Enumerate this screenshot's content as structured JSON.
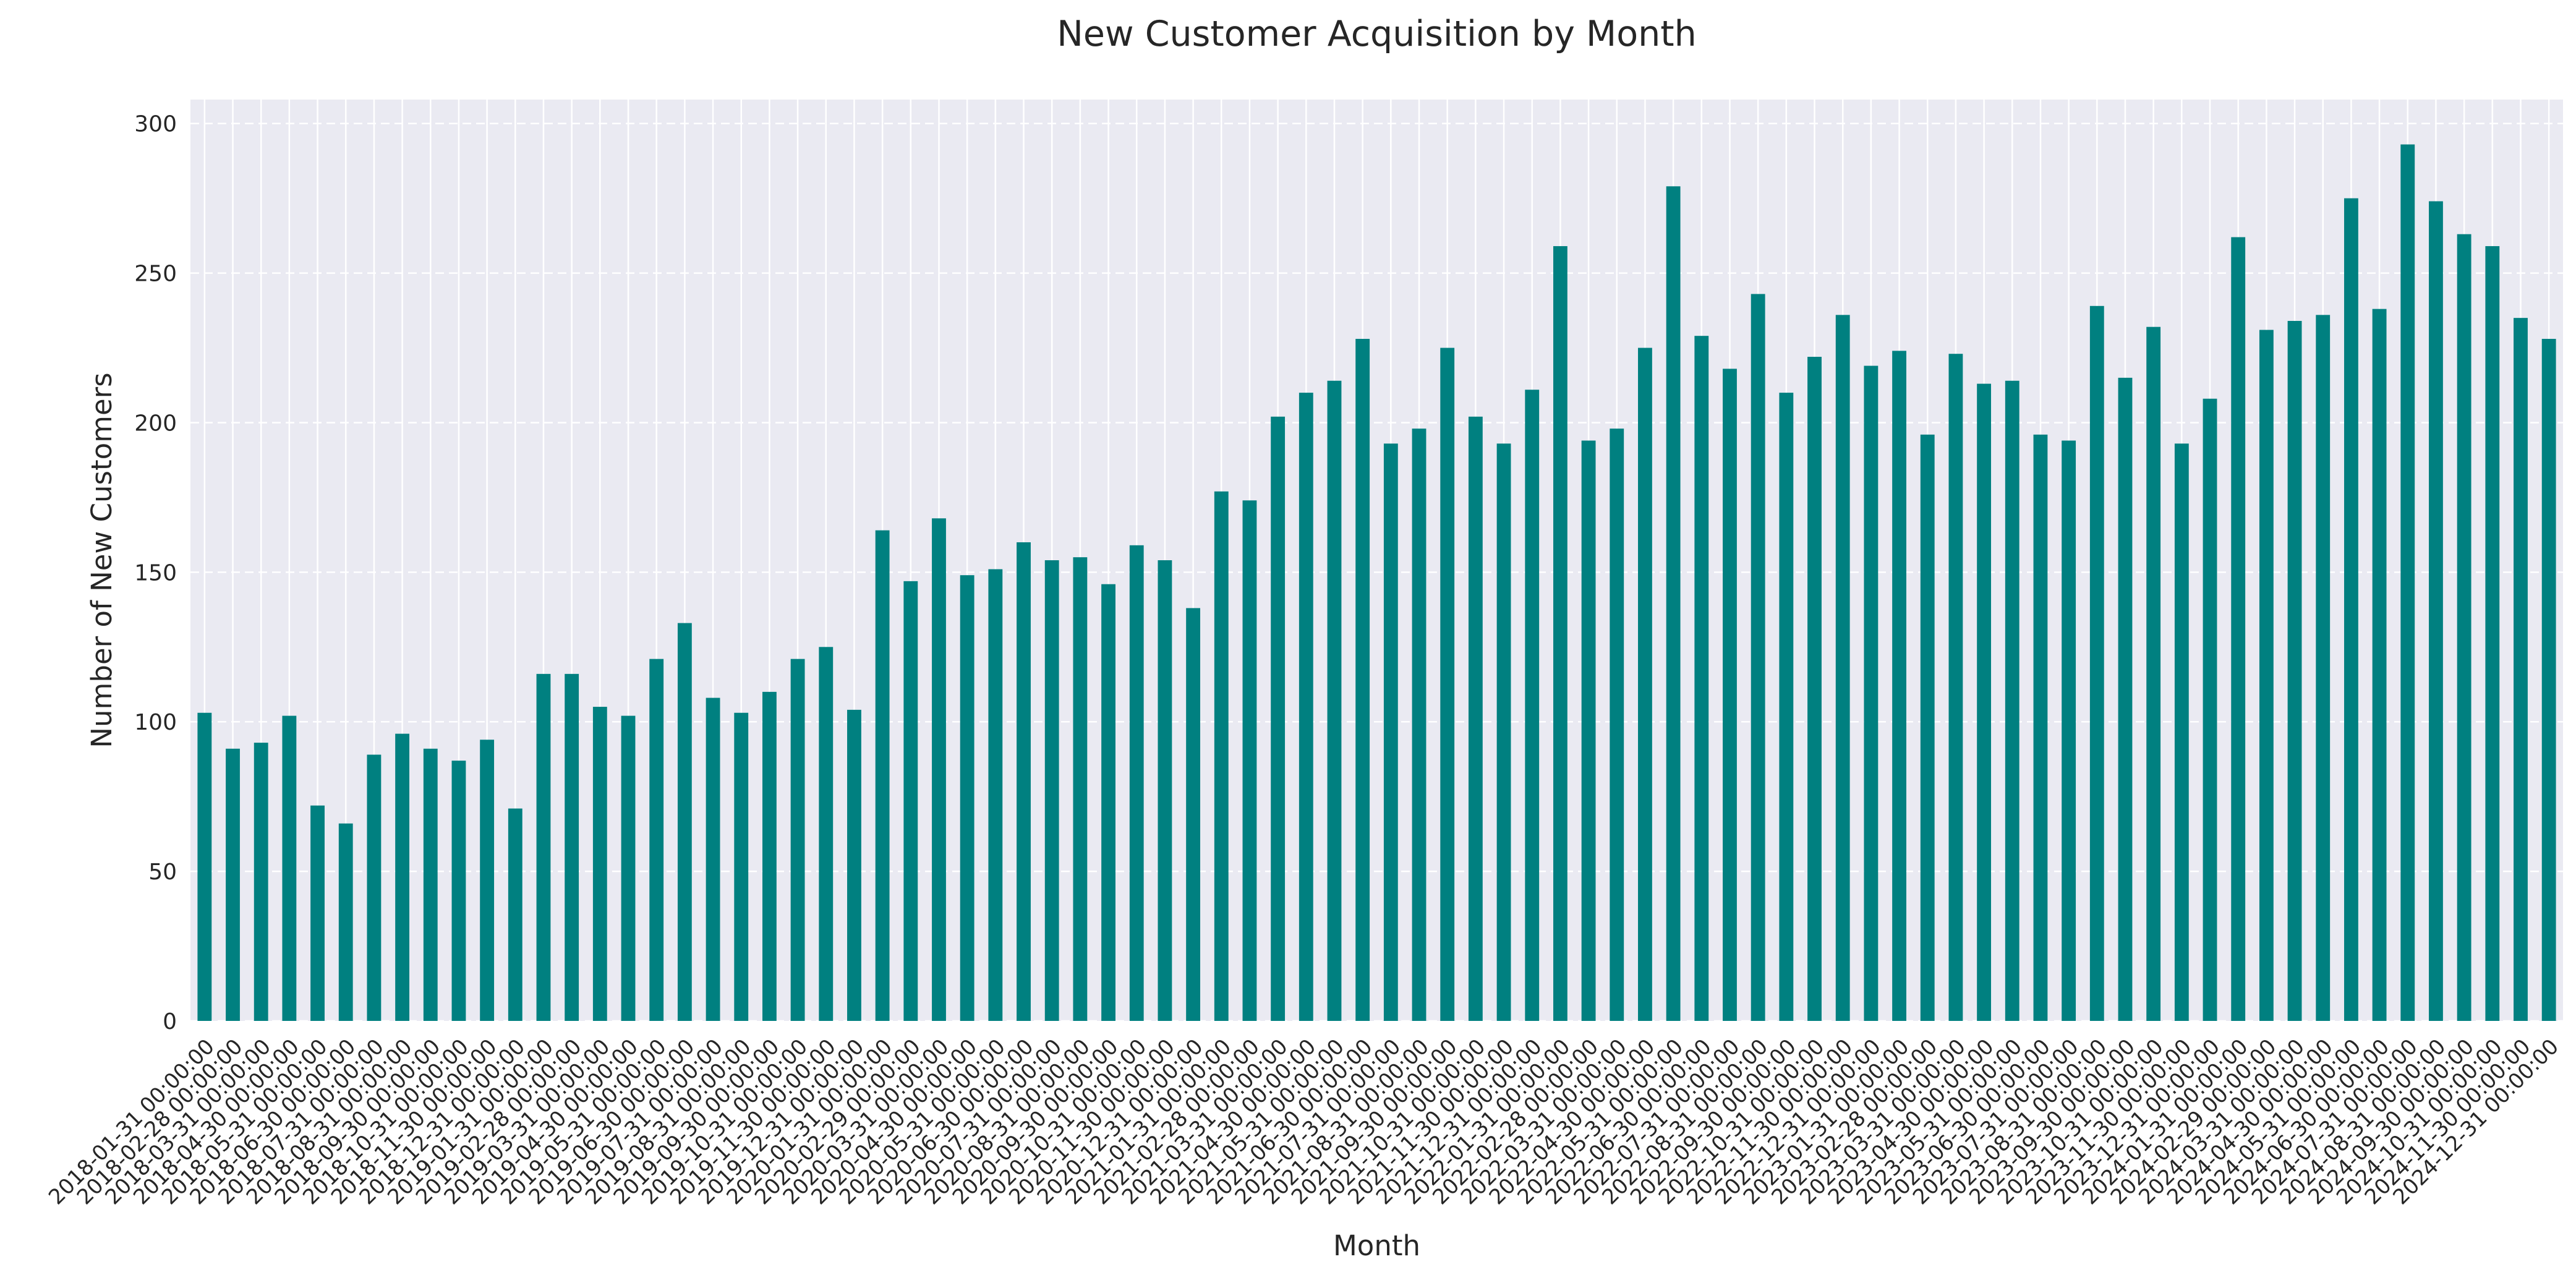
{
  "chart_data": {
    "type": "bar",
    "title": "New Customer Acquisition by Month",
    "xlabel": "Month",
    "ylabel": "Number of New Customers",
    "ylim": [
      0,
      308
    ],
    "yticks": [
      0,
      50,
      100,
      150,
      200,
      250,
      300
    ],
    "grid": true,
    "legend": "none",
    "bar_color": "#008080",
    "background_color": "#eaeaf2",
    "categories": [
      "2018-01-31 00:00:00",
      "2018-02-28 00:00:00",
      "2018-03-31 00:00:00",
      "2018-04-30 00:00:00",
      "2018-05-31 00:00:00",
      "2018-06-30 00:00:00",
      "2018-07-31 00:00:00",
      "2018-08-31 00:00:00",
      "2018-09-30 00:00:00",
      "2018-10-31 00:00:00",
      "2018-11-30 00:00:00",
      "2018-12-31 00:00:00",
      "2019-01-31 00:00:00",
      "2019-02-28 00:00:00",
      "2019-03-31 00:00:00",
      "2019-04-30 00:00:00",
      "2019-05-31 00:00:00",
      "2019-06-30 00:00:00",
      "2019-07-31 00:00:00",
      "2019-08-31 00:00:00",
      "2019-09-30 00:00:00",
      "2019-10-31 00:00:00",
      "2019-11-30 00:00:00",
      "2019-12-31 00:00:00",
      "2020-01-31 00:00:00",
      "2020-02-29 00:00:00",
      "2020-03-31 00:00:00",
      "2020-04-30 00:00:00",
      "2020-05-31 00:00:00",
      "2020-06-30 00:00:00",
      "2020-07-31 00:00:00",
      "2020-08-31 00:00:00",
      "2020-09-30 00:00:00",
      "2020-10-31 00:00:00",
      "2020-11-30 00:00:00",
      "2020-12-31 00:00:00",
      "2021-01-31 00:00:00",
      "2021-02-28 00:00:00",
      "2021-03-31 00:00:00",
      "2021-04-30 00:00:00",
      "2021-05-31 00:00:00",
      "2021-06-30 00:00:00",
      "2021-07-31 00:00:00",
      "2021-08-31 00:00:00",
      "2021-09-30 00:00:00",
      "2021-10-31 00:00:00",
      "2021-11-30 00:00:00",
      "2021-12-31 00:00:00",
      "2022-01-31 00:00:00",
      "2022-02-28 00:00:00",
      "2022-03-31 00:00:00",
      "2022-04-30 00:00:00",
      "2022-05-31 00:00:00",
      "2022-06-30 00:00:00",
      "2022-07-31 00:00:00",
      "2022-08-31 00:00:00",
      "2022-09-30 00:00:00",
      "2022-10-31 00:00:00",
      "2022-11-30 00:00:00",
      "2022-12-31 00:00:00",
      "2023-01-31 00:00:00",
      "2023-02-28 00:00:00",
      "2023-03-31 00:00:00",
      "2023-04-30 00:00:00",
      "2023-05-31 00:00:00",
      "2023-06-30 00:00:00",
      "2023-07-31 00:00:00",
      "2023-08-31 00:00:00",
      "2023-09-30 00:00:00",
      "2023-10-31 00:00:00",
      "2023-11-30 00:00:00",
      "2023-12-31 00:00:00",
      "2024-01-31 00:00:00",
      "2024-02-29 00:00:00",
      "2024-03-31 00:00:00",
      "2024-04-30 00:00:00",
      "2024-05-31 00:00:00",
      "2024-06-30 00:00:00",
      "2024-07-31 00:00:00",
      "2024-08-31 00:00:00",
      "2024-09-30 00:00:00",
      "2024-10-31 00:00:00",
      "2024-11-30 00:00:00",
      "2024-12-31 00:00:00"
    ],
    "values": [
      103,
      91,
      93,
      102,
      72,
      66,
      89,
      96,
      91,
      87,
      94,
      71,
      116,
      116,
      105,
      102,
      121,
      133,
      108,
      103,
      110,
      121,
      125,
      104,
      164,
      147,
      168,
      149,
      151,
      160,
      154,
      155,
      146,
      159,
      154,
      138,
      177,
      174,
      202,
      210,
      214,
      228,
      193,
      198,
      225,
      202,
      193,
      211,
      259,
      194,
      198,
      225,
      279,
      229,
      218,
      243,
      210,
      222,
      236,
      219,
      224,
      196,
      223,
      213,
      214,
      196,
      194,
      239,
      215,
      232,
      193,
      208,
      262,
      231,
      234,
      236,
      275,
      238,
      293,
      274,
      263,
      259,
      235,
      228
    ]
  }
}
